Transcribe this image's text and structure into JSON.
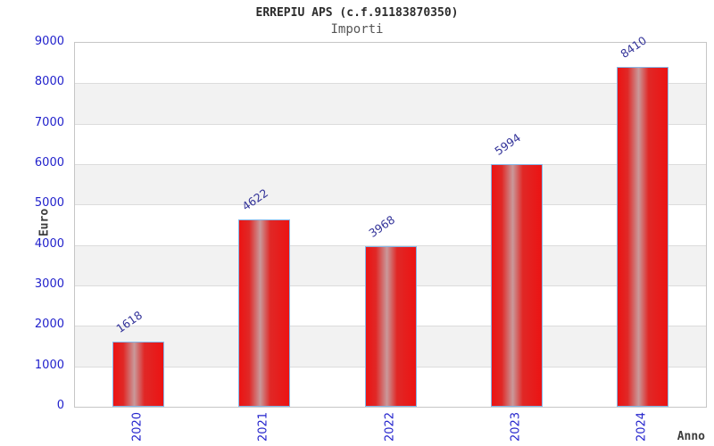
{
  "header": {
    "title": "ERREPIU APS (c.f.91183870350)",
    "subtitle": "Importi"
  },
  "chart_data": {
    "type": "bar",
    "title": "ERREPIU APS (c.f.91183870350)",
    "subtitle": "Importi",
    "categories": [
      "2020",
      "2021",
      "2022",
      "2023",
      "2024"
    ],
    "values": [
      1618,
      4622,
      3968,
      5994,
      8410
    ],
    "xlabel": "Anno",
    "ylabel": "Euro",
    "ylim": [
      0,
      9000
    ],
    "ytick_step": 1000,
    "yticks": [
      0,
      1000,
      2000,
      3000,
      4000,
      5000,
      6000,
      7000,
      8000,
      9000
    ],
    "legend": "none",
    "grid": "horizontal-bands-alternating",
    "colors": {
      "bar_fill": "#ec1313",
      "bar_highlight": "#c9999a",
      "bar_border": "#85b7e8",
      "axis_tick_text": "#2222cc",
      "value_label_text": "#333399",
      "band_gray": "#f2f2f2",
      "gridline": "#dcdcdc",
      "plot_border": "#c6c6c6",
      "title_text": "#2b2b2b",
      "subtitle_text": "#555555",
      "axis_label_text": "#3c3c3c"
    }
  }
}
